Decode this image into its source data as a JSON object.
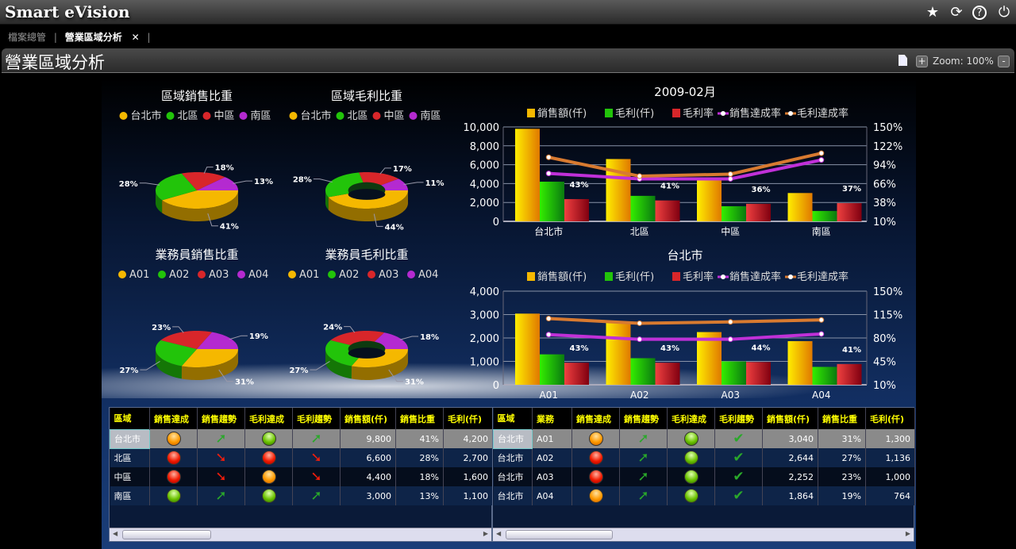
{
  "app": {
    "title": "Smart eVision",
    "icons": [
      "star-icon",
      "refresh-icon",
      "help-icon",
      "power-icon"
    ]
  },
  "tabs": [
    {
      "label": "檔案總管"
    },
    {
      "label": "營業區域分析",
      "close": "✕"
    }
  ],
  "page": {
    "title": "營業區域分析",
    "zoom_label": "Zoom: 100%",
    "zoom_in": "+",
    "zoom_out": "-"
  },
  "chart_data": [
    {
      "type": "pie",
      "title": "區域銷售比重",
      "labels": [
        "台北市",
        "北區",
        "中區",
        "南區"
      ],
      "values": [
        41,
        28,
        18,
        13
      ],
      "colors": [
        "#f5b800",
        "#22c40a",
        "#d8262a",
        "#b42ad0"
      ],
      "donut": false
    },
    {
      "type": "pie",
      "title": "區域毛利比重",
      "labels": [
        "台北市",
        "北區",
        "中區",
        "南區"
      ],
      "values": [
        44,
        28,
        17,
        11
      ],
      "colors": [
        "#f5b800",
        "#22c40a",
        "#d8262a",
        "#b42ad0"
      ],
      "donut": true
    },
    {
      "type": "pie",
      "title": "業務員銷售比重",
      "labels": [
        "A01",
        "A02",
        "A03",
        "A04"
      ],
      "values": [
        31,
        27,
        23,
        19
      ],
      "colors": [
        "#f5b800",
        "#22c40a",
        "#d8262a",
        "#b42ad0"
      ],
      "donut": false
    },
    {
      "type": "pie",
      "title": "業務員毛利比重",
      "labels": [
        "A01",
        "A02",
        "A03",
        "A04"
      ],
      "values": [
        31,
        27,
        24,
        18
      ],
      "colors": [
        "#f5b800",
        "#22c40a",
        "#d8262a",
        "#b42ad0"
      ],
      "donut": true
    },
    {
      "type": "bar+line",
      "title": "2009-02月",
      "categories": [
        "台北市",
        "北區",
        "中區",
        "南區"
      ],
      "ylim": [
        0,
        10000
      ],
      "yticks": [
        "10,000",
        "8,000",
        "6,000",
        "4,000",
        "2,000",
        "0"
      ],
      "y2lim": [
        10,
        150
      ],
      "y2ticks": [
        "150%",
        "122%",
        "94%",
        "66%",
        "38%",
        "10%"
      ],
      "series": [
        {
          "name": "銷售額(仟)",
          "kind": "bar",
          "axis": "left",
          "values": [
            9800,
            6600,
            4400,
            3000
          ],
          "color": "#f5b800"
        },
        {
          "name": "毛利(仟)",
          "kind": "bar",
          "axis": "left",
          "values": [
            4200,
            2700,
            1600,
            1100
          ],
          "color": "#22c40a"
        },
        {
          "name": "毛利率",
          "kind": "bar",
          "axis": "right",
          "values": [
            43,
            41,
            36,
            37
          ],
          "labels": [
            "43%",
            "41%",
            "36%",
            "37%"
          ],
          "color": "#d8262a"
        },
        {
          "name": "銷售達成率",
          "kind": "line",
          "axis": "right",
          "values": [
            81,
            73,
            73,
            101
          ],
          "color": "#c030d8"
        },
        {
          "name": "毛利達成率",
          "kind": "line",
          "axis": "right",
          "values": [
            105,
            77,
            80,
            111
          ],
          "color": "#d87a30"
        }
      ]
    },
    {
      "type": "bar+line",
      "title": "台北市",
      "categories": [
        "A01",
        "A02",
        "A03",
        "A04"
      ],
      "ylim": [
        0,
        4000
      ],
      "yticks": [
        "4,000",
        "3,000",
        "2,000",
        "1,000",
        "0"
      ],
      "y2lim": [
        10,
        150
      ],
      "y2ticks": [
        "150%",
        "115%",
        "80%",
        "45%",
        "10%"
      ],
      "series": [
        {
          "name": "銷售額(仟)",
          "kind": "bar",
          "axis": "left",
          "values": [
            3040,
            2644,
            2252,
            1864
          ],
          "color": "#f5b800"
        },
        {
          "name": "毛利(仟)",
          "kind": "bar",
          "axis": "left",
          "values": [
            1300,
            1136,
            1000,
            764
          ],
          "color": "#22c40a"
        },
        {
          "name": "毛利率",
          "kind": "bar",
          "axis": "right",
          "values": [
            43,
            43,
            44,
            41
          ],
          "labels": [
            "43%",
            "43%",
            "44%",
            "41%"
          ],
          "color": "#d8262a"
        },
        {
          "name": "銷售達成率",
          "kind": "line",
          "axis": "right",
          "values": [
            85,
            78,
            78,
            86
          ],
          "color": "#c030d8"
        },
        {
          "name": "毛利達成率",
          "kind": "line",
          "axis": "right",
          "values": [
            109,
            102,
            104,
            107
          ],
          "color": "#d87a30"
        }
      ]
    }
  ],
  "table_region": {
    "headers": [
      "區域",
      "銷售達成",
      "銷售趨勢",
      "毛利達成",
      "毛利趨勢",
      "銷售額(仟)",
      "銷售比重",
      "毛利(仟)"
    ],
    "rows": [
      {
        "region": "台北市",
        "sales_status": "orange",
        "sales_trend": "up",
        "profit_status": "green",
        "profit_trend": "up",
        "sales": "9,800",
        "share": "41%",
        "profit": "4,200"
      },
      {
        "region": "北區",
        "sales_status": "red",
        "sales_trend": "down",
        "profit_status": "red",
        "profit_trend": "down",
        "sales": "6,600",
        "share": "28%",
        "profit": "2,700"
      },
      {
        "region": "中區",
        "sales_status": "red",
        "sales_trend": "down",
        "profit_status": "orange",
        "profit_trend": "down",
        "sales": "4,400",
        "share": "18%",
        "profit": "1,600"
      },
      {
        "region": "南區",
        "sales_status": "green",
        "sales_trend": "up",
        "profit_status": "green",
        "profit_trend": "up",
        "sales": "3,000",
        "share": "13%",
        "profit": "1,100"
      }
    ]
  },
  "table_rep": {
    "headers": [
      "區域",
      "業務",
      "銷售達成",
      "銷售趨勢",
      "毛利達成",
      "毛利趨勢",
      "銷售額(仟)",
      "銷售比重",
      "毛利(仟)"
    ],
    "rows": [
      {
        "region": "台北市",
        "rep": "A01",
        "sales_status": "orange",
        "sales_trend": "up",
        "profit_status": "green",
        "profit_trend": "check",
        "sales": "3,040",
        "share": "31%",
        "profit": "1,300"
      },
      {
        "region": "台北市",
        "rep": "A02",
        "sales_status": "red",
        "sales_trend": "up",
        "profit_status": "green",
        "profit_trend": "check",
        "sales": "2,644",
        "share": "27%",
        "profit": "1,136"
      },
      {
        "region": "台北市",
        "rep": "A03",
        "sales_status": "red",
        "sales_trend": "up",
        "profit_status": "green",
        "profit_trend": "check",
        "sales": "2,252",
        "share": "23%",
        "profit": "1,000"
      },
      {
        "region": "台北市",
        "rep": "A04",
        "sales_status": "orange",
        "sales_trend": "up",
        "profit_status": "green",
        "profit_trend": "check",
        "sales": "1,864",
        "share": "19%",
        "profit": "764"
      }
    ]
  }
}
